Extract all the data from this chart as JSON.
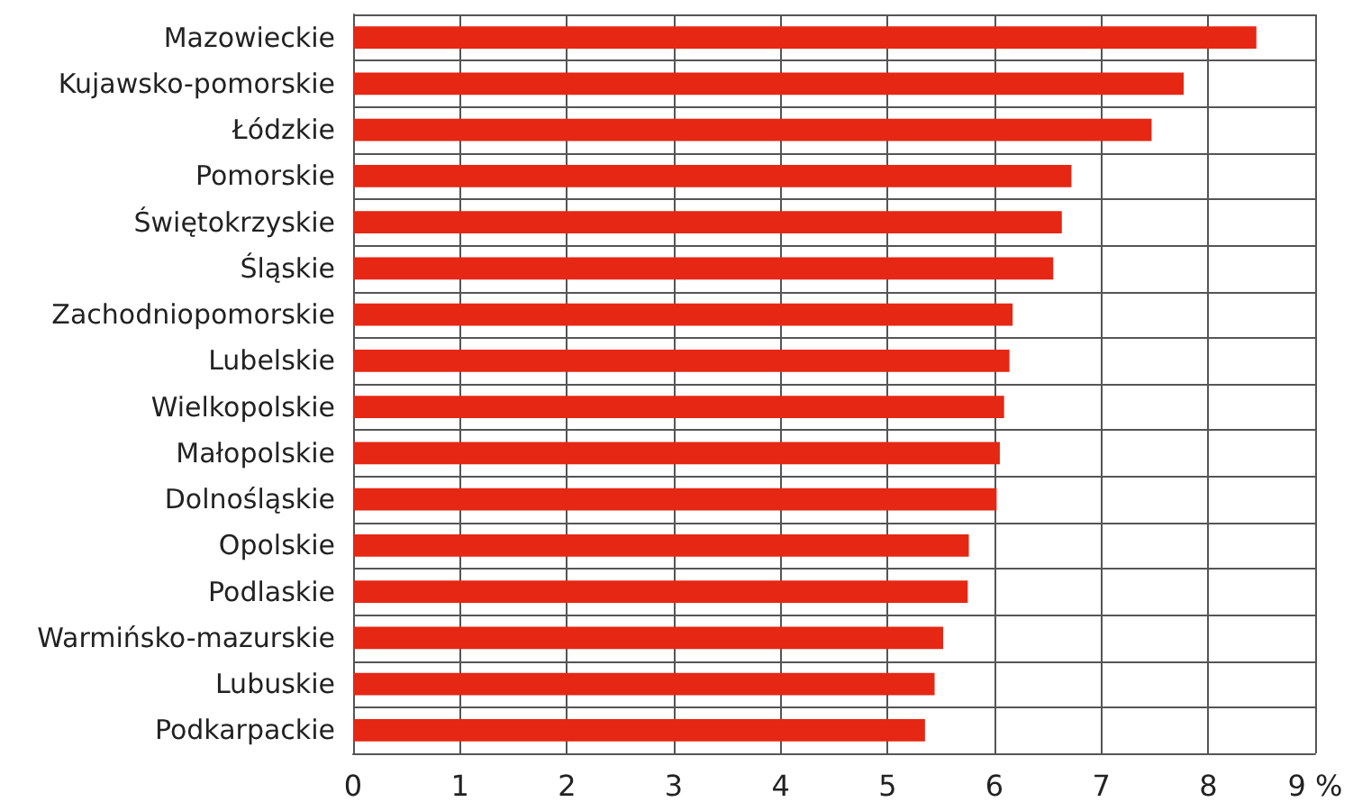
{
  "chart_data": {
    "type": "bar",
    "orientation": "horizontal",
    "categories": [
      "Mazowieckie",
      "Kujawsko-pomorskie",
      "Łódzkie",
      "Pomorskie",
      "Świętokrzyskie",
      "Śląskie",
      "Zachodniopomorskie",
      "Lubelskie",
      "Wielkopolskie",
      "Małopolskie",
      "Dolnośląskie",
      "Opolskie",
      "Podlaskie",
      "Warmińsko-mazurskie",
      "Lubuskie",
      "Podkarpackie"
    ],
    "values": [
      8.45,
      7.77,
      7.47,
      6.72,
      6.63,
      6.55,
      6.17,
      6.14,
      6.09,
      6.05,
      6.02,
      5.76,
      5.75,
      5.52,
      5.44,
      5.35
    ],
    "color": "#e52713",
    "xlim": [
      0,
      9
    ],
    "xticks": [
      0,
      1,
      2,
      3,
      4,
      5,
      6,
      7,
      8,
      {
        "value": 9,
        "label": "9 %"
      }
    ],
    "grid": true
  }
}
